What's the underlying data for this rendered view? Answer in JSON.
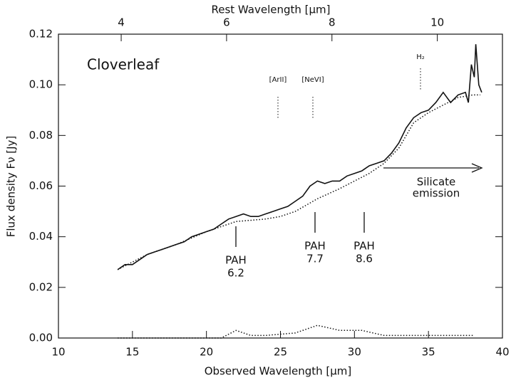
{
  "chart_data": {
    "type": "line",
    "title": "Rest Wavelength [μm]",
    "x_label": "Observed Wavelength [μm]",
    "y_label": "Flux density  Fν [Jy]",
    "xlim": [
      10,
      40
    ],
    "xticks": [
      10,
      15,
      20,
      25,
      30,
      35,
      40
    ],
    "ylim": [
      0,
      0.12
    ],
    "yticks": [
      {
        "value": 0,
        "label": "0.00"
      },
      {
        "value": 0.02,
        "label": "0.02"
      },
      {
        "value": 0.04,
        "label": "0.04"
      },
      {
        "value": 0.06,
        "label": "0.06"
      },
      {
        "value": 0.08,
        "label": "0.08"
      },
      {
        "value": 0.1,
        "label": "0.10"
      },
      {
        "value": 0.12,
        "label": "0.12"
      }
    ],
    "x2lim": [
      2.809,
      11.236
    ],
    "x2ticks": [
      4,
      6,
      8,
      10
    ],
    "annotations": {
      "object": "Cloverleaf",
      "lines": [
        "[ArII]",
        "[NeVI]",
        "H₂"
      ],
      "silicate": [
        "Silicate",
        "emission"
      ],
      "pah": [
        [
          "PAH",
          "6.2"
        ],
        [
          "PAH",
          "7.7"
        ],
        [
          "PAH",
          "8.6"
        ]
      ]
    },
    "series": [
      {
        "style": "solid",
        "color": "#111",
        "x": [
          14.0,
          14.5,
          15,
          15.5,
          16,
          16.5,
          17,
          17.5,
          18,
          18.5,
          19,
          19.5,
          20,
          20.5,
          21,
          21.5,
          22,
          22.5,
          23,
          23.5,
          24,
          24.5,
          25,
          25.5,
          26,
          26.5,
          27,
          27.5,
          28,
          28.5,
          29,
          29.5,
          30,
          30.5,
          31,
          31.5,
          32,
          32.5,
          33,
          33.5,
          34,
          34.5,
          35,
          35.5,
          36,
          36.5,
          37,
          37.5,
          37.7,
          37.9,
          38.1,
          38.2,
          38.4,
          38.6
        ],
        "values": [
          0.027,
          0.029,
          0.029,
          0.031,
          0.033,
          0.034,
          0.035,
          0.036,
          0.037,
          0.038,
          0.04,
          0.041,
          0.042,
          0.043,
          0.045,
          0.047,
          0.048,
          0.049,
          0.048,
          0.048,
          0.049,
          0.05,
          0.051,
          0.052,
          0.054,
          0.056,
          0.06,
          0.062,
          0.061,
          0.062,
          0.062,
          0.064,
          0.065,
          0.066,
          0.068,
          0.069,
          0.07,
          0.073,
          0.077,
          0.083,
          0.087,
          0.089,
          0.09,
          0.093,
          0.097,
          0.093,
          0.096,
          0.097,
          0.093,
          0.108,
          0.103,
          0.116,
          0.1,
          0.097
        ]
      },
      {
        "style": "dotted",
        "color": "#111",
        "x": [
          14,
          16,
          18,
          20,
          22,
          24,
          25,
          26,
          27.5,
          29,
          30,
          31,
          32,
          33,
          33.5,
          34,
          35,
          36,
          37,
          38,
          38.5
        ],
        "values": [
          0.027,
          0.033,
          0.037,
          0.042,
          0.046,
          0.047,
          0.048,
          0.05,
          0.055,
          0.059,
          0.062,
          0.065,
          0.069,
          0.075,
          0.08,
          0.085,
          0.089,
          0.092,
          0.095,
          0.096,
          0.096
        ]
      },
      {
        "style": "dotted",
        "color": "#111",
        "x": [
          14,
          18,
          21,
          22,
          23,
          24,
          26,
          27.5,
          29,
          30.5,
          32,
          35,
          38
        ],
        "values": [
          0,
          0,
          0,
          0.003,
          0.001,
          0.001,
          0.002,
          0.005,
          0.003,
          0.003,
          0.001,
          0.001,
          0.001
        ]
      }
    ]
  }
}
